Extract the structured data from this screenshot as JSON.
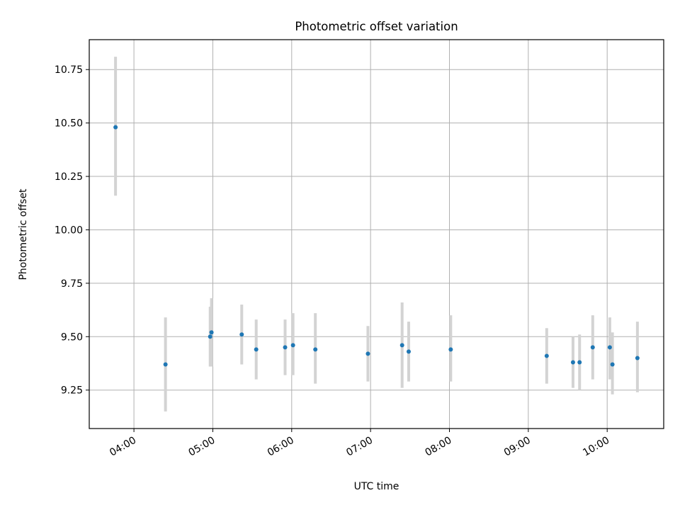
{
  "chart_data": {
    "type": "scatter",
    "title": "Photometric offset variation",
    "xlabel": "UTC time",
    "ylabel": "Photometric offset",
    "xlim": [
      "03:26",
      "10:43"
    ],
    "ylim": [
      9.07,
      10.89
    ],
    "grid": true,
    "x_ticks": [
      "04:00",
      "05:00",
      "06:00",
      "07:00",
      "08:00",
      "09:00",
      "10:00"
    ],
    "y_ticks": [
      9.25,
      9.5,
      9.75,
      10.0,
      10.25,
      10.5,
      10.75
    ],
    "y_tick_labels": [
      "9.25",
      "9.50",
      "9.75",
      "10.00",
      "10.25",
      "10.50",
      "10.75"
    ],
    "marker_color": "#1f77b4",
    "errorbar_color": "#d3d3d3",
    "points": [
      {
        "x": "03:46",
        "y": 10.48,
        "yerr_low": 10.16,
        "yerr_high": 10.81
      },
      {
        "x": "04:24",
        "y": 9.37,
        "yerr_low": 9.15,
        "yerr_high": 9.59
      },
      {
        "x": "04:58",
        "y": 9.5,
        "yerr_low": 9.36,
        "yerr_high": 9.64
      },
      {
        "x": "04:59",
        "y": 9.52,
        "yerr_low": 9.36,
        "yerr_high": 9.68
      },
      {
        "x": "05:22",
        "y": 9.51,
        "yerr_low": 9.37,
        "yerr_high": 9.65
      },
      {
        "x": "05:33",
        "y": 9.44,
        "yerr_low": 9.3,
        "yerr_high": 9.58
      },
      {
        "x": "05:55",
        "y": 9.45,
        "yerr_low": 9.32,
        "yerr_high": 9.58
      },
      {
        "x": "06:01",
        "y": 9.46,
        "yerr_low": 9.32,
        "yerr_high": 9.61
      },
      {
        "x": "06:18",
        "y": 9.44,
        "yerr_low": 9.28,
        "yerr_high": 9.61
      },
      {
        "x": "06:58",
        "y": 9.42,
        "yerr_low": 9.29,
        "yerr_high": 9.55
      },
      {
        "x": "07:24",
        "y": 9.46,
        "yerr_low": 9.26,
        "yerr_high": 9.66
      },
      {
        "x": "07:29",
        "y": 9.43,
        "yerr_low": 9.29,
        "yerr_high": 9.57
      },
      {
        "x": "08:01",
        "y": 9.44,
        "yerr_low": 9.29,
        "yerr_high": 9.6
      },
      {
        "x": "09:14",
        "y": 9.41,
        "yerr_low": 9.28,
        "yerr_high": 9.54
      },
      {
        "x": "09:34",
        "y": 9.38,
        "yerr_low": 9.26,
        "yerr_high": 9.5
      },
      {
        "x": "09:39",
        "y": 9.38,
        "yerr_low": 9.25,
        "yerr_high": 9.51
      },
      {
        "x": "09:49",
        "y": 9.45,
        "yerr_low": 9.3,
        "yerr_high": 9.6
      },
      {
        "x": "10:02",
        "y": 9.45,
        "yerr_low": 9.3,
        "yerr_high": 9.59
      },
      {
        "x": "10:04",
        "y": 9.37,
        "yerr_low": 9.23,
        "yerr_high": 9.52
      },
      {
        "x": "10:23",
        "y": 9.4,
        "yerr_low": 9.24,
        "yerr_high": 9.57
      }
    ]
  }
}
